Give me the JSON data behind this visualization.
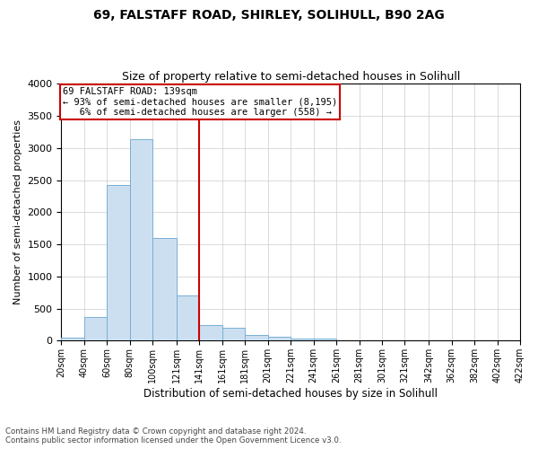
{
  "title1": "69, FALSTAFF ROAD, SHIRLEY, SOLIHULL, B90 2AG",
  "title2": "Size of property relative to semi-detached houses in Solihull",
  "xlabel": "Distribution of semi-detached houses by size in Solihull",
  "ylabel": "Number of semi-detached properties",
  "footnote": "Contains HM Land Registry data © Crown copyright and database right 2024.\nContains public sector information licensed under the Open Government Licence v3.0.",
  "bar_color": "#ccdff0",
  "bar_edgecolor": "#7aafd4",
  "vline_x": 141,
  "vline_color": "#cc0000",
  "annotation_box_color": "#cc0000",
  "annotation_line1": "69 FALSTAFF ROAD: 139sqm",
  "annotation_line2": "← 93% of semi-detached houses are smaller (8,195)",
  "annotation_line3": "   6% of semi-detached houses are larger (558) →",
  "bins": [
    20,
    40,
    60,
    80,
    100,
    121,
    141,
    161,
    181,
    201,
    221,
    241,
    261,
    281,
    301,
    321,
    342,
    362,
    382,
    402,
    422
  ],
  "bin_labels": [
    "20sqm",
    "40sqm",
    "60sqm",
    "80sqm",
    "100sqm",
    "121sqm",
    "141sqm",
    "161sqm",
    "181sqm",
    "201sqm",
    "221sqm",
    "241sqm",
    "261sqm",
    "281sqm",
    "301sqm",
    "321sqm",
    "342sqm",
    "362sqm",
    "382sqm",
    "402sqm",
    "422sqm"
  ],
  "counts": [
    50,
    375,
    2430,
    3130,
    1600,
    700,
    250,
    205,
    95,
    65,
    40,
    30,
    10,
    8,
    5,
    4,
    3,
    2,
    2,
    2
  ],
  "ylim": [
    0,
    4000
  ],
  "yticks": [
    0,
    500,
    1000,
    1500,
    2000,
    2500,
    3000,
    3500,
    4000
  ]
}
